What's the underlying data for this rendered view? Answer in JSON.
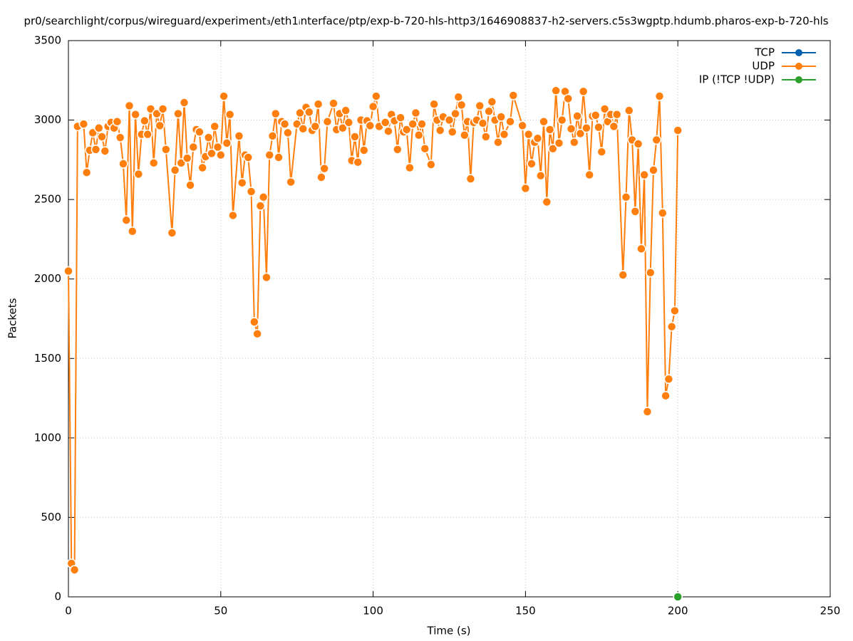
{
  "chart_data": {
    "type": "line",
    "title": "pr0/searchlight/corpus/wireguard/experiment₃/eth1ᵢnterface/ptp/exp-b-720-hls-http3/1646908837-h2-servers.c5s3wgptp.hdumb.pharos-exp-b-720-hls",
    "xlabel": "Time (s)",
    "ylabel": "Packets",
    "xlim": [
      0,
      250
    ],
    "xticks": [
      0,
      50,
      100,
      150,
      200,
      250
    ],
    "ylim": [
      0,
      3500
    ],
    "yticks": [
      0,
      500,
      1000,
      1500,
      2000,
      2500,
      3000,
      3500
    ],
    "grid": true,
    "legend": "top-right",
    "series": [
      {
        "name": "TCP",
        "color": "#0060ad",
        "x": [],
        "values": []
      },
      {
        "name": "UDP",
        "color": "#ff7f0e",
        "x": [
          0,
          1,
          2,
          3,
          5,
          6,
          7,
          8,
          9,
          10,
          11,
          12,
          13,
          14,
          15,
          16,
          17,
          18,
          19,
          20,
          21,
          22,
          23,
          24,
          25,
          26,
          27,
          28,
          29,
          30,
          31,
          32,
          34,
          35,
          36,
          37,
          38,
          39,
          40,
          41,
          42,
          43,
          44,
          45,
          46,
          47,
          48,
          49,
          50,
          51,
          52,
          53,
          54,
          56,
          57,
          58,
          59,
          60,
          61,
          62,
          63,
          64,
          65,
          66,
          67,
          68,
          69,
          70,
          71,
          72,
          73,
          75,
          76,
          77,
          78,
          79,
          80,
          81,
          82,
          83,
          84,
          85,
          87,
          88,
          89,
          90,
          91,
          92,
          93,
          94,
          95,
          96,
          97,
          98,
          99,
          100,
          101,
          102,
          104,
          105,
          106,
          107,
          108,
          109,
          110,
          111,
          112,
          113,
          114,
          115,
          116,
          117,
          119,
          120,
          121,
          122,
          123,
          125,
          126,
          127,
          128,
          129,
          130,
          131,
          132,
          133,
          134,
          135,
          136,
          137,
          138,
          139,
          140,
          141,
          142,
          143,
          145,
          146,
          149,
          150,
          151,
          152,
          153,
          154,
          155,
          156,
          157,
          158,
          159,
          160,
          161,
          162,
          163,
          164,
          165,
          166,
          167,
          168,
          169,
          170,
          171,
          172,
          173,
          174,
          175,
          176,
          177,
          178,
          179,
          180,
          182,
          183,
          184,
          185,
          186,
          187,
          188,
          189,
          190,
          191,
          192,
          193,
          194,
          195,
          196,
          197,
          198,
          199,
          200
        ],
        "values": [
          2050,
          210,
          170,
          2960,
          2975,
          2670,
          2810,
          2920,
          2815,
          2950,
          2895,
          2805,
          2960,
          2985,
          2950,
          2990,
          2890,
          2725,
          2370,
          3090,
          2300,
          3035,
          2660,
          2910,
          2995,
          2910,
          3070,
          2730,
          3040,
          2965,
          3070,
          2815,
          2290,
          2685,
          3040,
          2730,
          3110,
          2760,
          2590,
          2830,
          2940,
          2925,
          2700,
          2770,
          2890,
          2790,
          2960,
          2830,
          2780,
          3150,
          2855,
          3035,
          2400,
          2900,
          2605,
          2780,
          2765,
          2550,
          1730,
          1655,
          2460,
          2515,
          2010,
          2780,
          2900,
          3040,
          2765,
          2990,
          2975,
          2920,
          2610,
          2975,
          3045,
          2945,
          3080,
          3050,
          2935,
          2960,
          3100,
          2640,
          2695,
          2990,
          3105,
          2940,
          3040,
          2950,
          3060,
          2985,
          2745,
          2895,
          2735,
          3000,
          2810,
          2995,
          2965,
          3085,
          3150,
          2960,
          2985,
          2930,
          3035,
          2995,
          2815,
          3015,
          2925,
          2940,
          2700,
          2975,
          3045,
          2905,
          2975,
          2820,
          2720,
          3100,
          3000,
          2935,
          3020,
          3000,
          2925,
          3040,
          3145,
          3095,
          2905,
          2990,
          2630,
          2985,
          3000,
          3090,
          2980,
          2895,
          3055,
          3115,
          3000,
          2860,
          3020,
          2910,
          2990,
          3155,
          2965,
          2570,
          2910,
          2725,
          2860,
          2885,
          2650,
          2990,
          2485,
          2940,
          2820,
          3185,
          2855,
          3000,
          3180,
          3135,
          2945,
          2860,
          3025,
          2915,
          3180,
          2950,
          2655,
          3025,
          3030,
          2955,
          2800,
          3070,
          2990,
          3035,
          2960,
          3035,
          2025,
          2515,
          3060,
          2875,
          2425,
          2850,
          2190,
          2655,
          1165,
          2040,
          2685,
          2875,
          3150,
          2415,
          1265,
          1370,
          1700,
          1800,
          2935
        ]
      },
      {
        "name": "IP (!TCP  !UDP)",
        "color": "#2ca02c",
        "x": [
          200
        ],
        "values": [
          0
        ]
      }
    ]
  }
}
